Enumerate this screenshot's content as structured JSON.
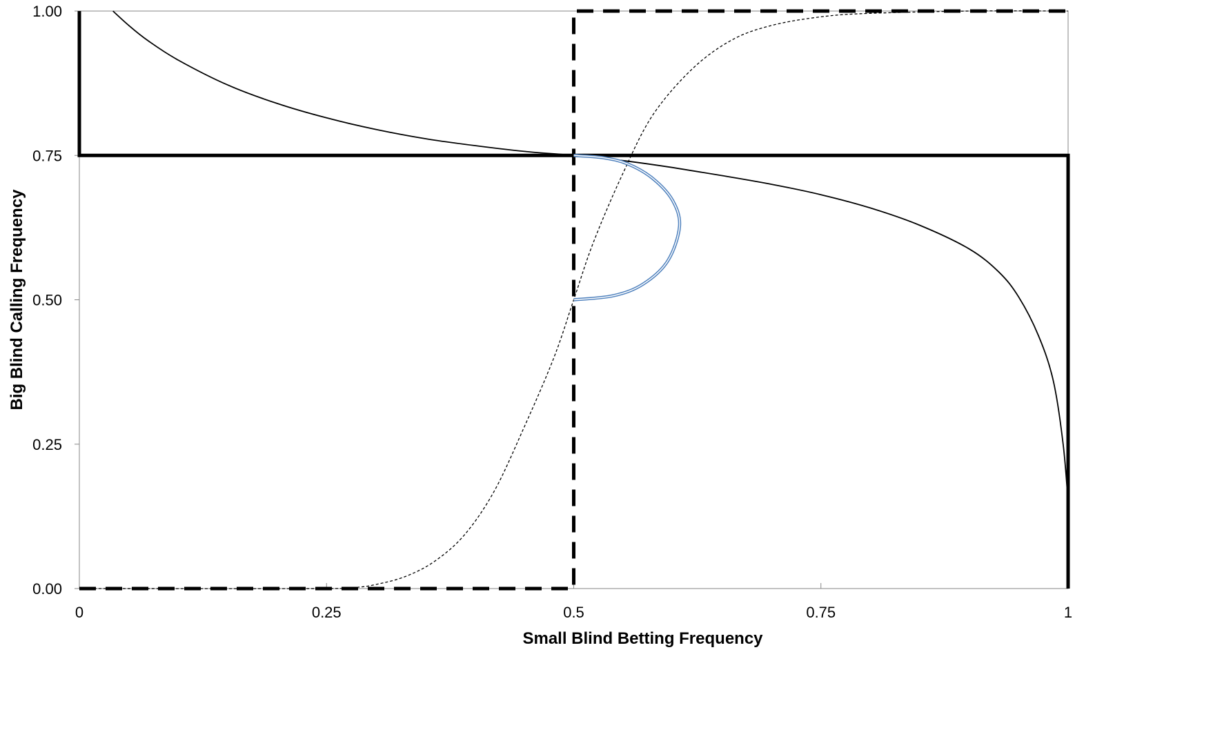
{
  "chart_data": {
    "type": "line",
    "title": "",
    "xlabel": "Small Blind Betting Frequency",
    "ylabel": "Big Blind Calling Frequency",
    "xlim": [
      0,
      1
    ],
    "ylim": [
      0,
      1
    ],
    "grid": false,
    "legend": "none",
    "x_ticks": [
      {
        "value": 0,
        "label": "0"
      },
      {
        "value": 0.25,
        "label": "0.25"
      },
      {
        "value": 0.5,
        "label": "0.5"
      },
      {
        "value": 0.75,
        "label": "0.75"
      },
      {
        "value": 1,
        "label": "1"
      }
    ],
    "y_ticks": [
      {
        "value": 0,
        "label": "0.00"
      },
      {
        "value": 0.25,
        "label": "0.25"
      },
      {
        "value": 0.5,
        "label": "0.50"
      },
      {
        "value": 0.75,
        "label": "0.75"
      },
      {
        "value": 1,
        "label": "1.00"
      }
    ],
    "series": [
      {
        "style": "thin-solid",
        "color": "#000000",
        "points": [
          [
            0.034,
            1.0
          ],
          [
            0.05,
            0.975
          ],
          [
            0.07,
            0.948
          ],
          [
            0.1,
            0.915
          ],
          [
            0.15,
            0.872
          ],
          [
            0.2,
            0.84
          ],
          [
            0.25,
            0.815
          ],
          [
            0.3,
            0.795
          ],
          [
            0.35,
            0.779
          ],
          [
            0.4,
            0.767
          ],
          [
            0.45,
            0.757
          ],
          [
            0.5,
            0.75
          ],
          [
            0.55,
            0.741
          ],
          [
            0.6,
            0.729
          ],
          [
            0.65,
            0.715
          ],
          [
            0.7,
            0.7
          ],
          [
            0.75,
            0.682
          ],
          [
            0.8,
            0.659
          ],
          [
            0.85,
            0.629
          ],
          [
            0.9,
            0.588
          ],
          [
            0.93,
            0.548
          ],
          [
            0.95,
            0.505
          ],
          [
            0.97,
            0.438
          ],
          [
            0.985,
            0.36
          ],
          [
            0.995,
            0.25
          ],
          [
            1.0,
            0.15
          ]
        ]
      },
      {
        "style": "thin-dashed",
        "color": "#000000",
        "points": [
          [
            0.0,
            0.0
          ],
          [
            0.25,
            0.0
          ],
          [
            0.28,
            0.002
          ],
          [
            0.3,
            0.007
          ],
          [
            0.33,
            0.021
          ],
          [
            0.36,
            0.048
          ],
          [
            0.39,
            0.094
          ],
          [
            0.42,
            0.17
          ],
          [
            0.45,
            0.28
          ],
          [
            0.48,
            0.4
          ],
          [
            0.5,
            0.5
          ],
          [
            0.52,
            0.6
          ],
          [
            0.55,
            0.72
          ],
          [
            0.58,
            0.82
          ],
          [
            0.62,
            0.9
          ],
          [
            0.66,
            0.95
          ],
          [
            0.7,
            0.975
          ],
          [
            0.75,
            0.99
          ],
          [
            0.8,
            0.996
          ],
          [
            0.9,
            1.0
          ],
          [
            1.0,
            1.0
          ]
        ]
      },
      {
        "style": "thick-solid",
        "color": "#000000",
        "points": [
          [
            0.0,
            1.0
          ],
          [
            0.0,
            0.75
          ],
          [
            1.0,
            0.75
          ],
          [
            1.0,
            0.0
          ]
        ]
      },
      {
        "style": "thick-dashed",
        "color": "#000000",
        "points": [
          [
            0.0,
            0.0
          ],
          [
            0.5,
            0.0
          ],
          [
            0.5,
            1.0
          ],
          [
            1.0,
            1.0
          ]
        ]
      },
      {
        "style": "double-blue",
        "color": "#4f81bd",
        "points": [
          [
            0.5,
            0.5
          ],
          [
            0.54,
            0.507
          ],
          [
            0.57,
            0.527
          ],
          [
            0.595,
            0.567
          ],
          [
            0.607,
            0.627
          ],
          [
            0.6,
            0.672
          ],
          [
            0.58,
            0.71
          ],
          [
            0.555,
            0.735
          ],
          [
            0.53,
            0.746
          ],
          [
            0.5,
            0.75
          ]
        ]
      }
    ]
  }
}
